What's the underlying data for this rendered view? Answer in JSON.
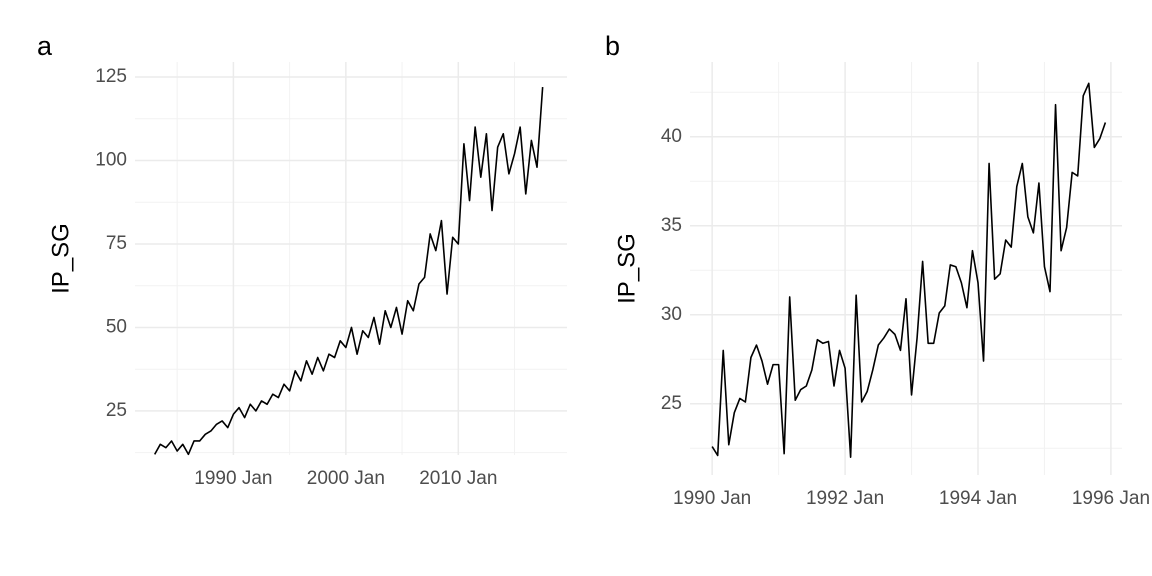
{
  "chart_data": [
    {
      "type": "line",
      "label": "a",
      "y_label": "IP_SG",
      "x": [
        "1983 Jan",
        "1983 Jul",
        "1984 Jan",
        "1984 Jul",
        "1985 Jan",
        "1985 Jul",
        "1986 Jan",
        "1986 Jul",
        "1987 Jan",
        "1987 Jul",
        "1988 Jan",
        "1988 Jul",
        "1989 Jan",
        "1989 Jul",
        "1990 Jan",
        "1990 Jul",
        "1991 Jan",
        "1991 Jul",
        "1992 Jan",
        "1992 Jul",
        "1993 Jan",
        "1993 Jul",
        "1994 Jan",
        "1994 Jul",
        "1995 Jan",
        "1995 Jul",
        "1996 Jan",
        "1996 Jul",
        "1997 Jan",
        "1997 Jul",
        "1998 Jan",
        "1998 Jul",
        "1999 Jan",
        "1999 Jul",
        "2000 Jan",
        "2000 Jul",
        "2001 Jan",
        "2001 Jul",
        "2002 Jan",
        "2002 Jul",
        "2003 Jan",
        "2003 Jul",
        "2004 Jan",
        "2004 Jul",
        "2005 Jan",
        "2005 Jul",
        "2006 Jan",
        "2006 Jul",
        "2007 Jan",
        "2007 Jul",
        "2008 Jan",
        "2008 Jul",
        "2009 Jan",
        "2009 Jul",
        "2010 Jan",
        "2010 Jul",
        "2011 Jan",
        "2011 Jul",
        "2012 Jan",
        "2012 Jul",
        "2013 Jan",
        "2013 Jul",
        "2014 Jan",
        "2014 Jul",
        "2015 Jan",
        "2015 Jul",
        "2016 Jan",
        "2016 Jul",
        "2017 Jan",
        "2017 Jul"
      ],
      "series": [
        {
          "name": "IP_SG",
          "color": "#000000",
          "values": [
            12,
            15,
            14,
            16,
            13,
            15,
            12,
            16,
            16,
            18,
            19,
            21,
            22,
            20,
            24,
            26,
            23,
            27,
            25,
            28,
            27,
            30,
            29,
            33,
            31,
            37,
            34,
            40,
            36,
            41,
            37,
            42,
            41,
            46,
            44,
            50,
            42,
            49,
            47,
            53,
            45,
            55,
            50,
            56,
            48,
            58,
            55,
            63,
            65,
            78,
            73,
            82,
            60,
            77,
            75,
            105,
            88,
            110,
            95,
            108,
            85,
            104,
            108,
            96,
            102,
            110,
            90,
            106,
            98,
            122
          ]
        }
      ],
      "xlim": [
        "1981 Apr",
        "2019 Sep"
      ],
      "xticks": [
        "1990 Jan",
        "2000 Jan",
        "2010 Jan"
      ],
      "ylim": [
        11.8,
        129.5
      ],
      "yticks": [
        25,
        50,
        75,
        100,
        125
      ],
      "grid": true
    },
    {
      "type": "line",
      "label": "b",
      "y_label": "IP_SG",
      "x": [
        "1990 Jan",
        "1990 Feb",
        "1990 Mar",
        "1990 Apr",
        "1990 May",
        "1990 Jun",
        "1990 Jul",
        "1990 Aug",
        "1990 Sep",
        "1990 Oct",
        "1990 Nov",
        "1990 Dec",
        "1991 Jan",
        "1991 Feb",
        "1991 Mar",
        "1991 Apr",
        "1991 May",
        "1991 Jun",
        "1991 Jul",
        "1991 Aug",
        "1991 Sep",
        "1991 Oct",
        "1991 Nov",
        "1991 Dec",
        "1992 Jan",
        "1992 Feb",
        "1992 Mar",
        "1992 Apr",
        "1992 May",
        "1992 Jun",
        "1992 Jul",
        "1992 Aug",
        "1992 Sep",
        "1992 Oct",
        "1992 Nov",
        "1992 Dec",
        "1993 Jan",
        "1993 Feb",
        "1993 Mar",
        "1993 Apr",
        "1993 May",
        "1993 Jun",
        "1993 Jul",
        "1993 Aug",
        "1993 Sep",
        "1993 Oct",
        "1993 Nov",
        "1993 Dec",
        "1994 Jan",
        "1994 Feb",
        "1994 Mar",
        "1994 Apr",
        "1994 May",
        "1994 Jun",
        "1994 Jul",
        "1994 Aug",
        "1994 Sep",
        "1994 Oct",
        "1994 Nov",
        "1994 Dec",
        "1995 Jan",
        "1995 Feb",
        "1995 Mar",
        "1995 Apr",
        "1995 May",
        "1995 Jun",
        "1995 Jul",
        "1995 Aug",
        "1995 Sep",
        "1995 Oct",
        "1995 Nov",
        "1995 Dec"
      ],
      "series": [
        {
          "name": "IP_SG",
          "color": "#000000",
          "values": [
            22.6,
            22.1,
            28.0,
            22.7,
            24.5,
            25.3,
            25.1,
            27.6,
            28.3,
            27.4,
            26.1,
            27.2,
            27.2,
            22.2,
            31.0,
            25.2,
            25.8,
            26.0,
            26.9,
            28.6,
            28.4,
            28.5,
            26.0,
            28.0,
            27.0,
            22.0,
            31.1,
            25.1,
            25.7,
            26.9,
            28.3,
            28.7,
            29.2,
            28.9,
            28.0,
            30.9,
            25.5,
            28.7,
            33.0,
            28.4,
            28.4,
            30.1,
            30.5,
            32.8,
            32.7,
            31.8,
            30.4,
            33.6,
            31.8,
            27.4,
            38.5,
            32.0,
            32.3,
            34.2,
            33.8,
            37.2,
            38.5,
            35.5,
            34.6,
            37.4,
            32.7,
            31.3,
            41.8,
            33.6,
            34.9,
            38.0,
            37.8,
            42.3,
            43.0,
            39.4,
            39.9,
            40.8
          ]
        }
      ],
      "xlim": [
        "1989 Sep",
        "1996 Mar"
      ],
      "xticks": [
        "1990 Jan",
        "1992 Jan",
        "1994 Jan",
        "1996 Jan"
      ],
      "ylim": [
        21.0,
        44.2
      ],
      "yticks": [
        25,
        30,
        35,
        40
      ],
      "grid": true
    }
  ]
}
